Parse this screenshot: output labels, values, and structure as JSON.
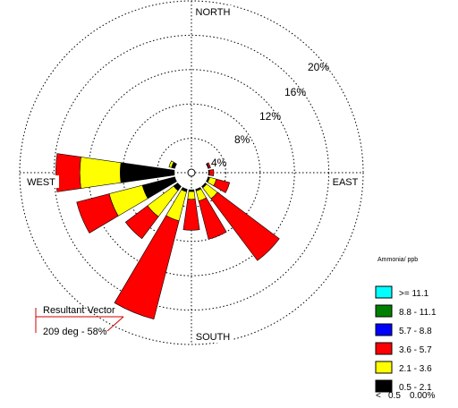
{
  "chart_data": {
    "type": "wind-rose",
    "directions": [
      "NORTH",
      "EAST",
      "SOUTH",
      "WEST"
    ],
    "ring_labels": [
      "4%",
      "8%",
      "12%",
      "16%",
      "20%"
    ],
    "ring_values": [
      4,
      8,
      12,
      16,
      20
    ],
    "rmax": 20,
    "units_label": "Ammonia/ ppb",
    "legend": [
      {
        "label": ">= 11.1",
        "color": "#00ffff"
      },
      {
        "label": "8.8 - 11.1",
        "color": "#008000"
      },
      {
        "label": "5.7 -  8.8",
        "color": "#0000ff"
      },
      {
        "label": "3.6 -  5.7",
        "color": "#ff0000"
      },
      {
        "label": "2.1 -  3.6",
        "color": "#ffff00"
      },
      {
        "label": "0.5 -  2.1",
        "color": "#000000"
      }
    ],
    "calm": {
      "symbol": "<",
      "label": "0.5",
      "value": "0.00%"
    },
    "resultant_vector": {
      "title": "Resultant Vector",
      "label": "209 deg - 58%",
      "direction_deg": 209
    },
    "petals": [
      {
        "dir": 292.5,
        "segments": [
          {
            "band": "0.5 - 2.1",
            "value": 0.4
          },
          {
            "band": "2.1 - 3.6",
            "value": 0.3
          }
        ]
      },
      {
        "dir": 270,
        "segments": [
          {
            "band": "0.5 - 2.1",
            "value": 6.3
          },
          {
            "band": "2.1 - 3.6",
            "value": 4.7
          },
          {
            "band": "3.6 - 5.7",
            "value": 2.8
          }
        ]
      },
      {
        "dir": 247.5,
        "segments": [
          {
            "band": "0.5 - 2.1",
            "value": 3.9
          },
          {
            "band": "2.1 - 3.6",
            "value": 4.0
          },
          {
            "band": "3.6 - 5.7",
            "value": 3.9
          }
        ]
      },
      {
        "dir": 225,
        "segments": [
          {
            "band": "0.5 - 2.1",
            "value": 0.6
          },
          {
            "band": "2.1 - 3.6",
            "value": 3.8
          },
          {
            "band": "3.6 - 5.7",
            "value": 3.2
          }
        ]
      },
      {
        "dir": 202.5,
        "segments": [
          {
            "band": "0.5 - 2.1",
            "value": 0.3
          },
          {
            "band": "2.1 - 3.6",
            "value": 3.5
          },
          {
            "band": "3.6 - 5.7",
            "value": 11.8
          }
        ]
      },
      {
        "dir": 180,
        "segments": [
          {
            "band": "0.5 - 2.1",
            "value": 0.2
          },
          {
            "band": "2.1 - 3.6",
            "value": 0.9
          },
          {
            "band": "3.6 - 5.7",
            "value": 3.6
          }
        ]
      },
      {
        "dir": 157.5,
        "segments": [
          {
            "band": "0.5 - 2.1",
            "value": 0.2
          },
          {
            "band": "2.1 - 3.6",
            "value": 1.2
          },
          {
            "band": "3.6 - 5.7",
            "value": 4.6
          }
        ]
      },
      {
        "dir": 135,
        "segments": [
          {
            "band": "0.5 - 2.1",
            "value": 0.2
          },
          {
            "band": "2.1 - 3.6",
            "value": 1.6
          },
          {
            "band": "3.6 - 5.7",
            "value": 9.0
          }
        ]
      },
      {
        "dir": 112.5,
        "segments": [
          {
            "band": "0.5 - 2.1",
            "value": 0.2
          },
          {
            "band": "2.1 - 3.6",
            "value": 0.8
          },
          {
            "band": "3.6 - 5.7",
            "value": 1.6
          }
        ]
      },
      {
        "dir": 90,
        "segments": [
          {
            "band": "0.5 - 2.1",
            "value": 0.1
          },
          {
            "band": "3.6 - 5.7",
            "value": 0.5
          }
        ]
      },
      {
        "dir": 67.5,
        "segments": [
          {
            "band": "0.5 - 2.1",
            "value": 0.1
          },
          {
            "band": "3.6 - 5.7",
            "value": 0.2
          }
        ]
      }
    ]
  }
}
